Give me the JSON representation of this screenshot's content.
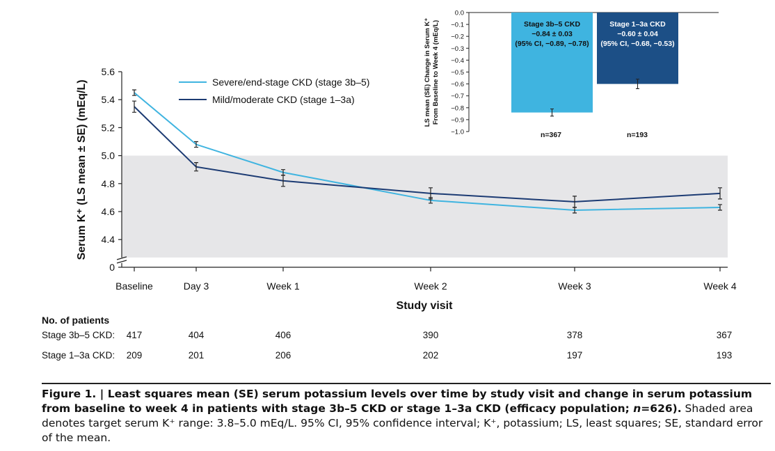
{
  "chart_data": [
    {
      "type": "line",
      "xlabel": "Study visit",
      "ylabel": "Serum K⁺ (LS mean ± SE) (mEq/L)",
      "categories": [
        "Baseline",
        "Day 3",
        "Week 1",
        "Week 2",
        "Week 3",
        "Week 4"
      ],
      "x_days": [
        0,
        3,
        7,
        14,
        21,
        28
      ],
      "ylim": [
        4.2,
        5.6
      ],
      "yticks": [
        "5.6",
        "5.4",
        "5.2",
        "5.0",
        "4.8",
        "4.6",
        "4.4",
        "0"
      ],
      "axis_break": true,
      "shaded_band": [
        3.8,
        5.0
      ],
      "legend_position": "top-center",
      "series": [
        {
          "name": "Severe/end-stage CKD (stage 3b–5)",
          "color": "#3fb4e0",
          "values": [
            5.45,
            5.08,
            4.88,
            4.68,
            4.61,
            4.63
          ],
          "se": [
            0.02,
            0.02,
            0.02,
            0.02,
            0.02,
            0.02
          ]
        },
        {
          "name": "Mild/moderate CKD (stage 1–3a)",
          "color": "#1c3b73",
          "values": [
            5.35,
            4.92,
            4.82,
            4.73,
            4.67,
            4.73
          ],
          "se": [
            0.04,
            0.03,
            0.04,
            0.04,
            0.04,
            0.04
          ]
        }
      ],
      "patients_table": {
        "header": "No. of patients",
        "rows": [
          {
            "label": "Stage 3b–5 CKD:",
            "counts": [
              "417",
              "404",
              "406",
              "390",
              "378",
              "367"
            ]
          },
          {
            "label": "Stage 1–3a CKD:",
            "counts": [
              "209",
              "201",
              "206",
              "202",
              "197",
              "193"
            ]
          }
        ]
      }
    },
    {
      "type": "bar",
      "ylabel_lines": [
        "LS mean (SE) Change in Serum K⁺",
        "From Baseline to Week 4 (mEq/L)"
      ],
      "ylim": [
        -1.0,
        0.0
      ],
      "yticks": [
        "0.0",
        "−0.1",
        "−0.2",
        "−0.3",
        "−0.4",
        "−0.5",
        "−0.6",
        "−0.7",
        "−0.8",
        "−0.9",
        "−1.0"
      ],
      "bars": [
        {
          "value": -0.84,
          "se": 0.03,
          "color": "#3fb4e0",
          "label_lines": [
            "Stage 3b–5 CKD",
            "−0.84 ± 0.03",
            "(95% CI, −0.89, −0.78)"
          ],
          "n_label": "n=367"
        },
        {
          "value": -0.6,
          "se": 0.04,
          "color": "#1c4f86",
          "label_lines": [
            "Stage 1–3a CKD",
            "−0.60 ± 0.04",
            "(95% CI, −0.68, −0.53)"
          ],
          "n_label": "n=193"
        }
      ]
    }
  ],
  "caption": {
    "prefix": "Figure 1. | ",
    "bold": "Least squares mean (SE) serum potassium levels over time by study visit and change in serum potassium from baseline to week 4 in patients with stage 3b–5 CKD or stage 1–3a CKD (efficacy population; ",
    "bold_italic": "n",
    "bold_end": "=626).",
    "normal": " Shaded area denotes target serum K⁺ range: 3.8–5.0 mEq/L. 95% CI, 95% confidence interval; K⁺, potassium; LS, least squares; SE, standard error of the mean."
  }
}
